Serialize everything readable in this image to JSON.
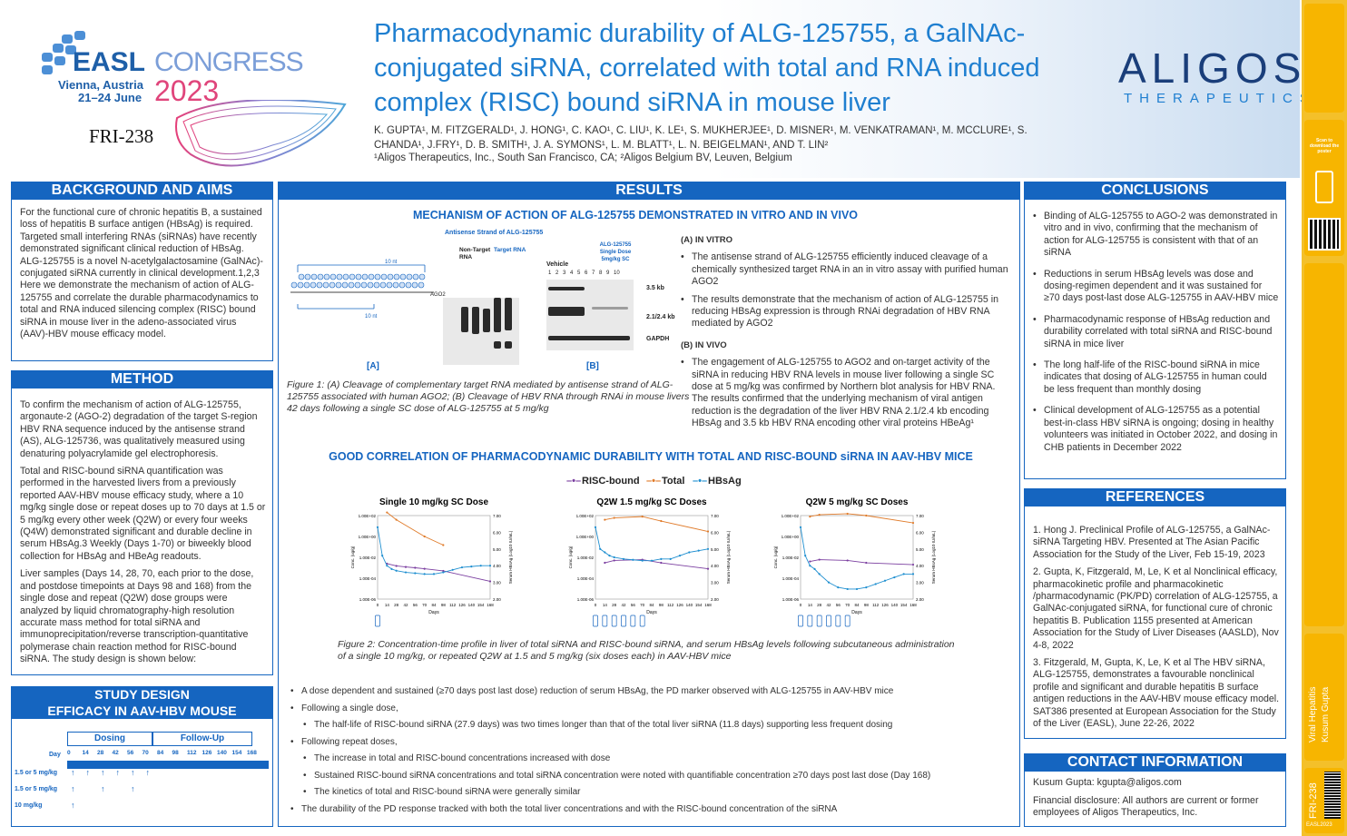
{
  "header": {
    "congress_main": "EASL",
    "congress_sub": "CONGRESS",
    "location": "Vienna, Austria",
    "dates": "21–24 June",
    "year": "2023",
    "poster_id": "FRI-238",
    "title": "Pharmacodynamic durability of ALG-125755, a GalNAc-conjugated siRNA, correlated with total and RNA induced complex (RISC) bound siRNA in mouse liver",
    "authors": "K. GUPTA¹, M. FITZGERALD¹, J. HONG¹, C. KAO¹, C. LIU¹, K. LE¹, S. MUKHERJEE¹, D. MISNER¹, M. VENKATRAMAN¹, M. MCCLURE¹, S. CHANDA¹, J.FRY¹, D. B. SMITH¹, J. A. SYMONS¹, L. M. BLATT¹, L. N. BEIGELMAN¹, AND T. LIN²",
    "affiliations": "¹Aligos Therapeutics, Inc., South San Francisco, CA; ²Aligos Belgium BV, Leuven, Belgium",
    "company": "ALIGOS",
    "company_sub": "THERAPEUTICS"
  },
  "background": {
    "heading": "BACKGROUND AND AIMS",
    "text": "For the functional cure of chronic hepatitis B, a sustained loss of hepatitis B surface antigen (HBsAg) is required. Targeted small interfering RNAs (siRNAs) have recently demonstrated significant clinical reduction of HBsAg. ALG-125755 is a novel N-acetylgalactosamine (GalNAc)-conjugated siRNA currently in clinical development.1,2,3 Here we demonstrate the mechanism of action of ALG-125755 and correlate the durable pharmacodynamics to total and RNA induced silencing complex (RISC) bound siRNA in mouse liver in the adeno-associated virus (AAV)-HBV mouse efficacy model."
  },
  "method": {
    "heading": "METHOD",
    "p1": "To confirm the mechanism of action of ALG-125755, argonaute-2 (AGO-2) degradation of the target S-region HBV RNA sequence induced by the antisense strand (AS), ALG-125736, was qualitatively measured using denaturing polyacrylamide gel electrophoresis.",
    "p2": "Total and RISC-bound siRNA quantification was performed in the harvested livers from a previously reported AAV-HBV mouse efficacy study, where a 10 mg/kg single dose or repeat doses up to 70 days at 1.5 or 5 mg/kg every other week (Q2W) or every four weeks (Q4W) demonstrated significant and durable decline in serum HBsAg.3 Weekly (Days 1-70) or biweekly blood collection for HBsAg and HBeAg readouts.",
    "p3": "Liver samples (Days 14, 28, 70, each prior to the dose, and postdose timepoints at Days 98 and 168) from the single dose and repeat (Q2W) dose groups were analyzed by liquid chromatography-high resolution accurate mass method for total siRNA and immunoprecipitation/reverse transcription-quantitative polymerase chain reaction method for RISC-bound siRNA. The study design is shown below:"
  },
  "study": {
    "heading1": "STUDY DESIGN",
    "heading2": "EFFICACY IN AAV-HBV MOUSE",
    "dosing": "Dosing",
    "followup": "Follow-Up",
    "day_label": "Day",
    "days": [
      "0",
      "14",
      "28",
      "42",
      "56",
      "70",
      "84",
      "98",
      "112",
      "126",
      "140",
      "154",
      "168"
    ],
    "rows": [
      "1.5 or 5 mg/kg",
      "1.5 or 5 mg/kg",
      "10 mg/kg"
    ]
  },
  "results": {
    "heading": "RESULTS",
    "sub1": "MECHANISM OF ACTION OF ALG-125755 DEMONSTRATED IN VITRO AND IN VIVO",
    "gel_a_title": "Antisense Strand of ALG-125755",
    "gel_a_col1": "Non-Target RNA",
    "gel_a_col2": "Target RNA",
    "gel_a_ago": "AGO2",
    "gel_a_label": "[A]",
    "gel_b_vehicle": "Vehicle",
    "gel_b_drug": "ALG-125755 Single Dose 5mg/kg SC",
    "gel_b_lanes": "1 2 3 4 5 6 7 8 9 10",
    "gel_b_band1": "3.5 kb",
    "gel_b_band2": "2.1/2.4 kb",
    "gel_b_band3": "GAPDH",
    "gel_b_label": "[B]",
    "nt10": "10 nt",
    "invitro_h": "(A) IN VITRO",
    "invitro_1": "The antisense strand of ALG-125755 efficiently induced cleavage of a chemically synthesized target RNA in an in vitro assay with purified human AGO2",
    "invitro_2": "The results demonstrate that the mechanism of action of ALG-125755 in reducing HBsAg expression is through RNAi degradation of HBV RNA mediated by AGO2",
    "invivo_h": "(B) IN VIVO",
    "invivo_1": "The engagement of ALG-125755 to AGO2 and on-target activity of the siRNA in reducing HBV RNA levels in mouse liver following a single SC dose at 5 mg/kg was confirmed by Northern blot analysis for HBV RNA. The results confirmed that the underlying mechanism of viral antigen reduction is the degradation of the liver HBV RNA 2.1/2.4 kb encoding HBsAg and 3.5 kb HBV RNA encoding other viral proteins HBeAg¹",
    "fig1": "Figure 1: (A) Cleavage of complementary target RNA mediated by antisense strand of ALG-125755 associated with human AGO2; (B) Cleavage of HBV RNA through RNAi in mouse livers 42 days following a single SC dose of ALG-125755 at 5 mg/kg",
    "sub2": "GOOD CORRELATION OF PHARMACODYNAMIC DURABILITY WITH TOTAL AND RISC-BOUND siRNA IN AAV-HBV MICE",
    "legend": [
      "RISC-bound",
      "Total",
      "HBsAg"
    ],
    "fig2": "Figure 2: Concentration-time profile in liver of total siRNA and RISC-bound siRNA, and serum HBsAg levels following subcutaneous administration of a single 10 mg/kg, or repeated Q2W at 1.5 and 5 mg/kg (six doses each) in AAV-HBV mice",
    "b1": "A dose dependent and sustained (≥70 days post last dose) reduction of serum HBsAg, the PD marker observed with ALG-125755 in AAV-HBV mice",
    "b2": "Following a single dose,",
    "b2a": "The half-life of RISC-bound siRNA (27.9 days) was two times longer than that of the total liver siRNA (11.8 days) supporting less frequent dosing",
    "b3": "Following repeat doses,",
    "b3a": "The increase in total and RISC-bound concentrations increased with dose",
    "b3b": "Sustained RISC-bound siRNA concentrations and total siRNA concentration were noted with quantifiable concentration ≥70 days post last dose (Day 168)",
    "b3c": "The kinetics of total and RISC-bound siRNA were generally similar",
    "b4": "The durability of the PD response tracked with both the total liver concentrations and with the RISC-bound concentration of the siRNA"
  },
  "chart_data": [
    {
      "type": "line",
      "title": "Single 10 mg/kg SC Dose",
      "xlabel": "Days",
      "ylabel": "Conc. (ug/g)",
      "y2label": "Serum HBsAg (Log10 IU/mL)",
      "x_ticks": [
        0,
        14,
        28,
        42,
        56,
        70,
        84,
        98,
        112,
        126,
        140,
        154,
        168
      ],
      "y_ticks": [
        "1.00E+02",
        "1.00E+00",
        "1.00E-02",
        "1.00E-04",
        "1.00E-06"
      ],
      "y2_ticks": [
        "7.00",
        "6.00",
        "5.00",
        "4.00",
        "3.00",
        "2.00"
      ],
      "series": [
        {
          "name": "Total",
          "x": [
            14,
            28,
            70,
            98
          ],
          "y": [
            200,
            40,
            1.0,
            0.15
          ]
        },
        {
          "name": "RISC-bound",
          "x": [
            14,
            28,
            42,
            56,
            70,
            98,
            168
          ],
          "y": [
            0.0025,
            0.0015,
            0.0012,
            0.001,
            0.0008,
            0.0005,
            5e-05
          ]
        },
        {
          "name": "HBsAg",
          "x": [
            0,
            7,
            14,
            21,
            28,
            42,
            56,
            70,
            84,
            98,
            112,
            126,
            140,
            154,
            168
          ],
          "y2": [
            6.3,
            4.6,
            4.0,
            3.8,
            3.7,
            3.6,
            3.55,
            3.5,
            3.5,
            3.6,
            3.75,
            3.9,
            3.95,
            4.0,
            4.0
          ]
        }
      ]
    },
    {
      "type": "line",
      "title": "Q2W 1.5 mg/kg SC Doses",
      "xlabel": "Days",
      "ylabel": "Conc. (ug/g)",
      "y2label": "Serum HBsAg (Log10 IU/mL)",
      "x_ticks": [
        0,
        14,
        28,
        42,
        56,
        70,
        84,
        98,
        112,
        126,
        140,
        154,
        168
      ],
      "series": [
        {
          "name": "Total",
          "x": [
            14,
            28,
            70,
            98,
            168
          ],
          "y": [
            40,
            60,
            80,
            30,
            3
          ]
        },
        {
          "name": "RISC-bound",
          "x": [
            14,
            28,
            70,
            98,
            168
          ],
          "y": [
            0.003,
            0.005,
            0.006,
            0.003,
            0.0008
          ]
        },
        {
          "name": "HBsAg",
          "x": [
            0,
            7,
            14,
            21,
            28,
            42,
            56,
            70,
            84,
            98,
            112,
            126,
            140,
            154,
            168
          ],
          "y2": [
            6.3,
            5.0,
            4.8,
            4.6,
            4.5,
            4.4,
            4.35,
            4.3,
            4.3,
            4.4,
            4.4,
            4.6,
            4.8,
            4.9,
            5.0
          ]
        }
      ]
    },
    {
      "type": "line",
      "title": "Q2W 5 mg/kg SC Doses",
      "xlabel": "Days",
      "ylabel": "Conc. (ug/g)",
      "y2label": "Serum HBsAg (Log10 IU/mL)",
      "x_ticks": [
        0,
        14,
        28,
        42,
        56,
        70,
        84,
        98,
        112,
        126,
        140,
        154,
        168
      ],
      "series": [
        {
          "name": "Total",
          "x": [
            14,
            28,
            70,
            98,
            168
          ],
          "y": [
            80,
            120,
            150,
            100,
            20
          ]
        },
        {
          "name": "RISC-bound",
          "x": [
            14,
            28,
            70,
            98,
            168
          ],
          "y": [
            0.004,
            0.006,
            0.005,
            0.003,
            0.002
          ]
        },
        {
          "name": "HBsAg",
          "x": [
            0,
            7,
            14,
            21,
            28,
            42,
            56,
            70,
            84,
            98,
            112,
            126,
            140,
            154,
            168
          ],
          "y2": [
            6.3,
            4.6,
            4.0,
            3.8,
            3.5,
            3.0,
            2.7,
            2.6,
            2.6,
            2.7,
            2.9,
            3.1,
            3.3,
            3.5,
            3.5
          ]
        }
      ]
    }
  ],
  "conclusions": {
    "heading": "CONCLUSIONS",
    "items": [
      "Binding of ALG-125755 to AGO-2 was demonstrated in vitro and in vivo, confirming that the mechanism of action for ALG-125755 is consistent with that of an siRNA",
      "Reductions in serum HBsAg levels was dose and dosing-regimen dependent and it was sustained for ≥70 days post-last dose ALG-125755 in AAV-HBV mice",
      "Pharmacodynamic response of HBsAg reduction and durability correlated with total siRNA and RISC-bound siRNA in mice liver",
      "The long half-life of the RISC-bound siRNA in mice indicates that dosing of ALG-125755 in human could be less frequent than monthly dosing",
      "Clinical development of ALG-125755 as a potential best-in-class HBV siRNA is ongoing; dosing in healthy volunteers was initiated in October 2022, and dosing in CHB patients in December 2022"
    ]
  },
  "references": {
    "heading": "REFERENCES",
    "items": [
      "1. Hong J. Preclinical Profile of ALG-125755, a GalNAc-siRNA Targeting HBV. Presented at The Asian Pacific Association for the Study of the Liver, Feb 15-19, 2023",
      "2. Gupta, K, Fitzgerald, M, Le, K et al Nonclinical efficacy, pharmacokinetic profile and pharmacokinetic /pharmacodynamic (PK/PD) correlation of ALG-125755, a GalNAc-conjugated siRNA, for functional cure of chronic hepatitis B. Publication 1155 presented at American Association for the Study of Liver Diseases (AASLD), Nov 4-8, 2022",
      "3. Fitzgerald, M, Gupta, K, Le, K et al The HBV siRNA, ALG-125755, demonstrates a favourable nonclinical profile and significant and durable hepatitis B surface antigen reductions in the AAV-HBV mouse efficacy model. SAT386 presented at European Association for the Study of the Liver (EASL), June 22-26, 2022"
    ]
  },
  "contact": {
    "heading": "CONTACT INFORMATION",
    "email": "Kusum Gupta: kgupta@aligos.com",
    "disclosure": "Financial disclosure: All authors are current or former employees of Aligos Therapeutics, Inc."
  },
  "sidebar": {
    "scan_text": "Scan to download the poster",
    "topic": "Viral Hepatitis",
    "author": "Kusum Gupta",
    "poster_id": "FRI-238",
    "footer": "EASL2023"
  },
  "colors": {
    "primary": "#1565c0",
    "title": "#1f7fd0",
    "risc": "#7b3fa0",
    "total": "#e07b2a",
    "hbsag": "#1f8fd0",
    "sidebar": "#f4c02a"
  }
}
